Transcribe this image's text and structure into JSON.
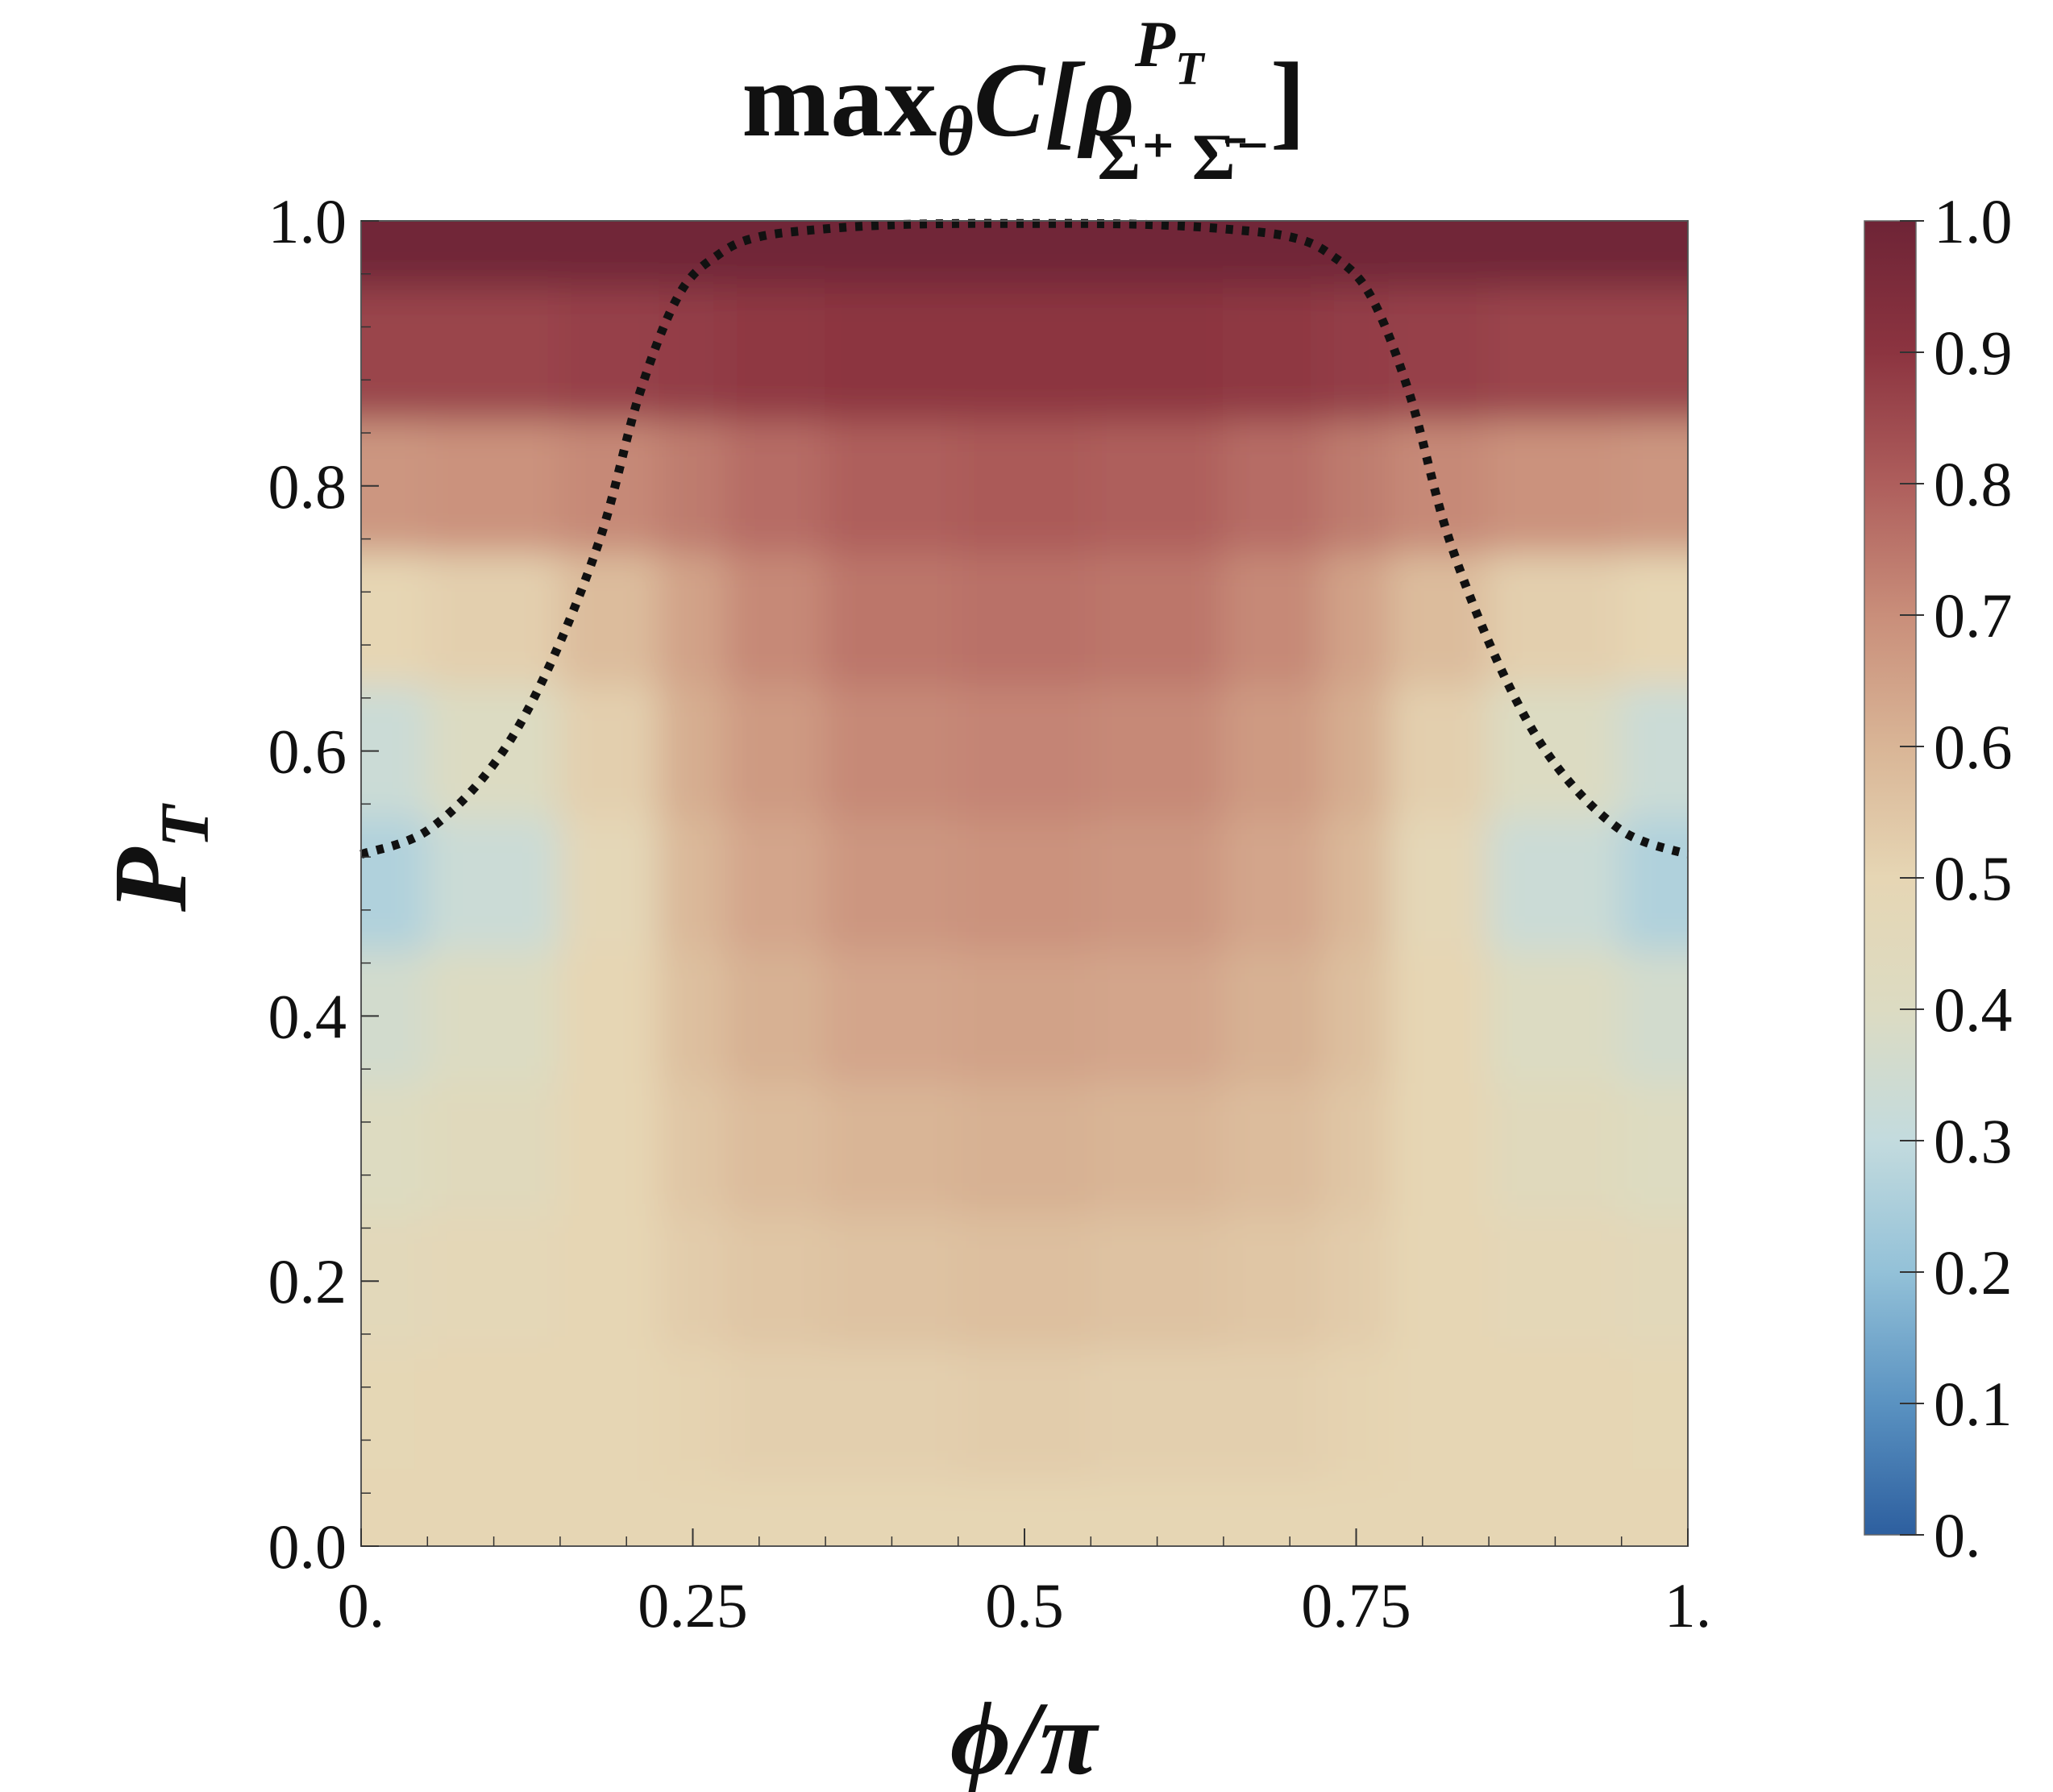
{
  "chart_data": {
    "type": "heatmap",
    "title": {
      "prefix": "max",
      "sub_var": "θ",
      "func": "C[ρ",
      "sup": "P",
      "sup_sub": "T",
      "sub": "Σ⁺ Σ̄⁻",
      "suffix": "]"
    },
    "xlabel": "ϕ/π",
    "ylabel": {
      "main": "P",
      "sub": "T"
    },
    "xlim": [
      0,
      1
    ],
    "ylim": [
      0,
      1
    ],
    "x_ticks": [
      {
        "value": 0,
        "label": "0."
      },
      {
        "value": 0.25,
        "label": "0.25"
      },
      {
        "value": 0.5,
        "label": "0.5"
      },
      {
        "value": 0.75,
        "label": "0.75"
      },
      {
        "value": 1,
        "label": "1."
      }
    ],
    "y_ticks": [
      {
        "value": 0,
        "label": "0.0"
      },
      {
        "value": 0.2,
        "label": "0.2"
      },
      {
        "value": 0.4,
        "label": "0.4"
      },
      {
        "value": 0.6,
        "label": "0.6"
      },
      {
        "value": 0.8,
        "label": "0.8"
      },
      {
        "value": 1,
        "label": "1.0"
      }
    ],
    "colorbar": {
      "range": [
        0,
        1
      ],
      "ticks": [
        {
          "value": 0,
          "label": "0."
        },
        {
          "value": 0.1,
          "label": "0.1"
        },
        {
          "value": 0.2,
          "label": "0.2"
        },
        {
          "value": 0.3,
          "label": "0.3"
        },
        {
          "value": 0.4,
          "label": "0.4"
        },
        {
          "value": 0.5,
          "label": "0.5"
        },
        {
          "value": 0.6,
          "label": "0.6"
        },
        {
          "value": 0.7,
          "label": "0.7"
        },
        {
          "value": 0.8,
          "label": "0.8"
        },
        {
          "value": 0.9,
          "label": "0.9"
        },
        {
          "value": 1,
          "label": "1.0"
        }
      ],
      "colors": [
        "#2d5f9f",
        "#5a92c1",
        "#93c1d8",
        "#c3dbde",
        "#dcdbc2",
        "#e6d6b4",
        "#d9b596",
        "#c98e7a",
        "#ae5e5c",
        "#8c3440",
        "#6e2436"
      ]
    },
    "field_grid": {
      "x": [
        0,
        0.1,
        0.2,
        0.25,
        0.3,
        0.4,
        0.5,
        0.6,
        0.7,
        0.75,
        0.8,
        0.9,
        1
      ],
      "y": [
        0,
        0.1,
        0.2,
        0.3,
        0.4,
        0.5,
        0.6,
        0.7,
        0.8,
        0.9,
        1
      ],
      "z": [
        [
          0.5,
          0.5,
          0.5,
          0.5,
          0.5,
          0.5,
          0.5,
          0.5,
          0.5,
          0.5,
          0.5,
          0.5,
          0.5
        ],
        [
          0.49,
          0.5,
          0.5,
          0.51,
          0.52,
          0.52,
          0.53,
          0.52,
          0.52,
          0.51,
          0.5,
          0.5,
          0.49
        ],
        [
          0.46,
          0.48,
          0.5,
          0.53,
          0.55,
          0.56,
          0.57,
          0.56,
          0.55,
          0.53,
          0.5,
          0.48,
          0.46
        ],
        [
          0.41,
          0.44,
          0.5,
          0.55,
          0.58,
          0.6,
          0.61,
          0.6,
          0.58,
          0.55,
          0.5,
          0.44,
          0.41
        ],
        [
          0.36,
          0.4,
          0.5,
          0.57,
          0.61,
          0.64,
          0.65,
          0.64,
          0.61,
          0.57,
          0.5,
          0.4,
          0.36
        ],
        [
          0.26,
          0.33,
          0.48,
          0.59,
          0.64,
          0.68,
          0.69,
          0.68,
          0.64,
          0.59,
          0.48,
          0.33,
          0.26
        ],
        [
          0.33,
          0.4,
          0.52,
          0.62,
          0.67,
          0.71,
          0.72,
          0.71,
          0.67,
          0.62,
          0.52,
          0.4,
          0.33
        ],
        [
          0.5,
          0.52,
          0.58,
          0.65,
          0.71,
          0.75,
          0.76,
          0.75,
          0.71,
          0.65,
          0.58,
          0.52,
          0.5
        ],
        [
          0.68,
          0.69,
          0.71,
          0.74,
          0.77,
          0.8,
          0.81,
          0.8,
          0.77,
          0.74,
          0.71,
          0.69,
          0.68
        ],
        [
          0.86,
          0.86,
          0.87,
          0.88,
          0.89,
          0.9,
          0.9,
          0.9,
          0.89,
          0.88,
          0.87,
          0.86,
          0.86
        ],
        [
          0.99,
          0.99,
          0.99,
          0.99,
          0.99,
          0.99,
          0.99,
          0.99,
          0.99,
          0.99,
          0.99,
          0.99,
          0.99
        ]
      ]
    },
    "boundary_curve": {
      "style": "dotted",
      "color": "#111111",
      "x": [
        0,
        0.05,
        0.1,
        0.14,
        0.18,
        0.21,
        0.24,
        0.27,
        0.3,
        0.35,
        0.4,
        0.45,
        0.5,
        0.55,
        0.6,
        0.65,
        0.7,
        0.73,
        0.76,
        0.79,
        0.82,
        0.86,
        0.9,
        0.95,
        1
      ],
      "y": [
        0.522,
        0.54,
        0.59,
        0.66,
        0.76,
        0.87,
        0.945,
        0.975,
        0.988,
        0.994,
        0.997,
        0.998,
        0.998,
        0.998,
        0.997,
        0.994,
        0.988,
        0.975,
        0.945,
        0.87,
        0.76,
        0.66,
        0.59,
        0.54,
        0.522
      ]
    }
  }
}
